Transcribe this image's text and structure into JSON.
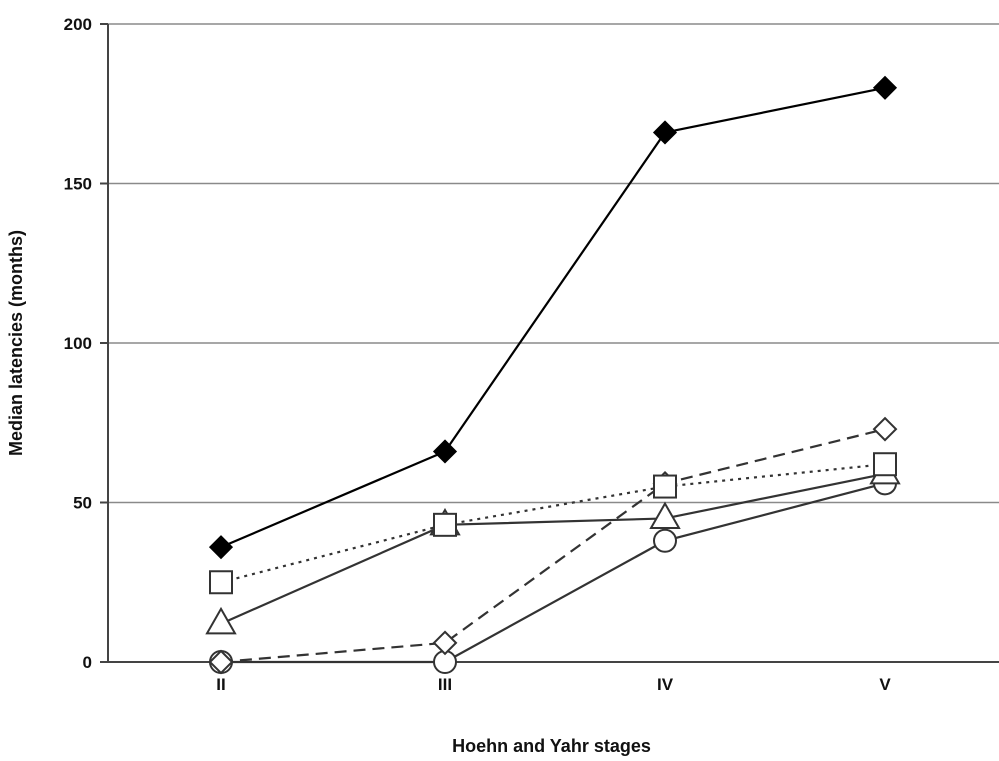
{
  "chart_data": {
    "type": "line",
    "title": "",
    "xlabel": "Hoehn and Yahr stages",
    "ylabel": "Median latencies (months)",
    "categories": [
      "II",
      "III",
      "IV",
      "V"
    ],
    "ylim": [
      0,
      200
    ],
    "yticks": [
      0,
      50,
      100,
      150,
      200
    ],
    "grid": true,
    "legend": "none",
    "series": [
      {
        "marker": "filled-diamond",
        "line": "solid",
        "color": "#000000",
        "values": [
          36,
          66,
          166,
          180
        ]
      },
      {
        "marker": "open-square",
        "line": "dotted",
        "color": "#333333",
        "values": [
          25,
          43,
          55,
          62
        ]
      },
      {
        "marker": "open-triangle",
        "line": "solid",
        "color": "#333333",
        "values": [
          12,
          43,
          45,
          59
        ]
      },
      {
        "marker": "open-diamond",
        "line": "dashed",
        "color": "#333333",
        "values": [
          0,
          6,
          56,
          73
        ]
      },
      {
        "marker": "open-circle",
        "line": "solid",
        "color": "#333333",
        "values": [
          0,
          0,
          38,
          56
        ]
      }
    ]
  }
}
